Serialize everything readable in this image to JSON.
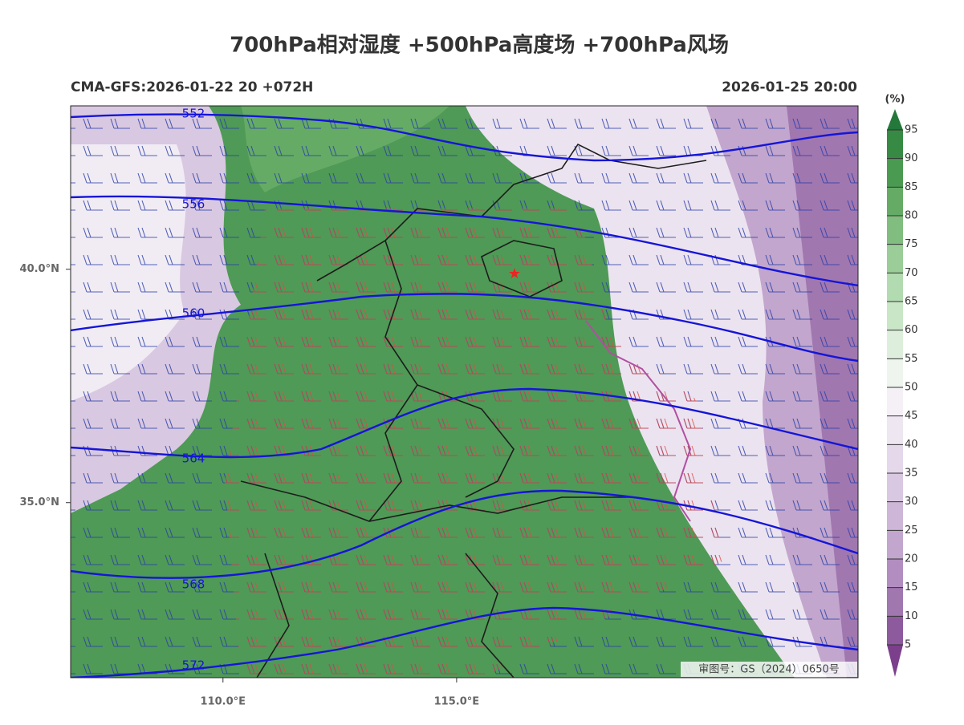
{
  "title": "700hPa相对湿度 +500hPa高度场 +700hPa风场",
  "run_info": "CMA-GFS:2026-01-22 20 +072H",
  "valid_time": "2026-01-25 20:00",
  "map": {
    "lon_range": [
      106.74,
      123.59
    ],
    "lat_range": [
      31.25,
      43.5
    ],
    "lon_ticks": [
      {
        "value": 110,
        "label": "110.0°E"
      },
      {
        "value": 115,
        "label": "115.0°E"
      }
    ],
    "lat_ticks": [
      {
        "value": 40,
        "label": "40.0°N"
      },
      {
        "value": 35,
        "label": "35.0°N"
      }
    ],
    "contour_labels": [
      "552",
      "556",
      "560",
      "564",
      "568",
      "572"
    ],
    "review_number": "审图号：GS（2024）0650号"
  },
  "colorbar": {
    "unit": "(%)",
    "ticks": [
      5,
      10,
      15,
      20,
      25,
      30,
      35,
      40,
      45,
      50,
      55,
      60,
      65,
      70,
      75,
      80,
      85,
      90,
      95
    ],
    "colors": [
      "#7b3f8c",
      "#8e5a9e",
      "#a177b0",
      "#b28ec0",
      "#c2a6cd",
      "#cdb6d7",
      "#d9c8e1",
      "#e4d8ea",
      "#eee6f1",
      "#f5f0f6",
      "#eef5ee",
      "#ddefdc",
      "#c9e6c7",
      "#b3dbb1",
      "#9acd98",
      "#80bd7f",
      "#65ab66",
      "#4b9a52",
      "#368a43",
      "#23783a"
    ]
  }
}
